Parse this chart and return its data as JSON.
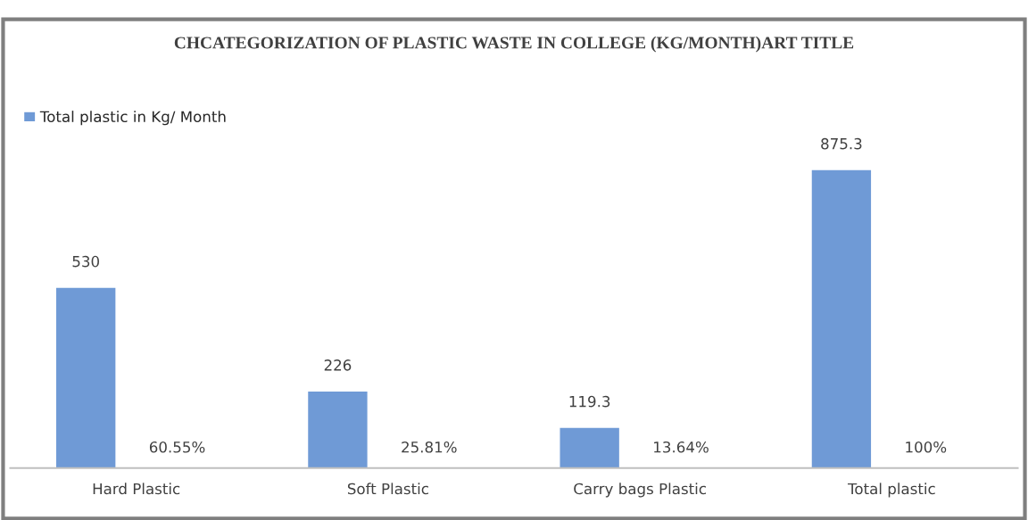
{
  "chart_data": {
    "type": "bar",
    "title": "CHCATEGORIZATION OF PLASTIC WASTE IN COLLEGE (KG/MONTH)ART TITLE",
    "categories": [
      "Hard Plastic",
      "Soft Plastic",
      "Carry bags Plastic",
      "Total plastic"
    ],
    "series": [
      {
        "name": "Total plastic in Kg/ Month",
        "color": "#6f9ad6",
        "values": [
          530,
          226,
          119.3,
          875.3
        ]
      }
    ],
    "data_labels": true,
    "legend": "top left",
    "grid": false,
    "annotations": [
      "60.55%",
      "25.81%",
      "13.64%",
      "100%"
    ]
  }
}
